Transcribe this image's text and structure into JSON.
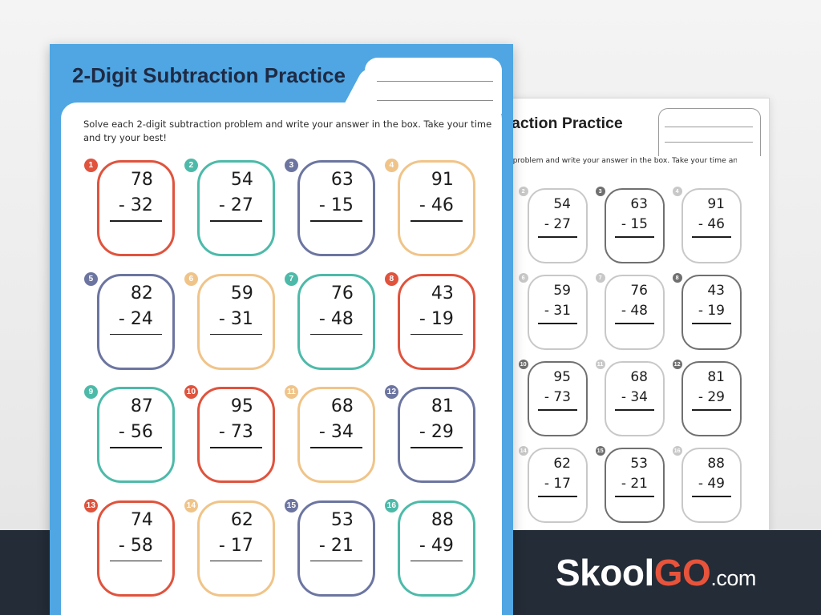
{
  "header": {
    "title": "2-Digit Subtraction Practice",
    "instructions": "Solve each 2-digit subtraction problem and write your answer in the box. Take your time and try your best!"
  },
  "problems": [
    {
      "number": 1,
      "top": 78,
      "bottom": "- 32",
      "color": "#e0533d"
    },
    {
      "number": 2,
      "top": 54,
      "bottom": "- 27",
      "color": "#4dbaa9"
    },
    {
      "number": 3,
      "top": 63,
      "bottom": "- 15",
      "color": "#6c75a0"
    },
    {
      "number": 4,
      "top": 91,
      "bottom": "- 46",
      "color": "#f0c489"
    },
    {
      "number": 5,
      "top": 82,
      "bottom": "- 24",
      "color": "#6c75a0"
    },
    {
      "number": 6,
      "top": 59,
      "bottom": "- 31",
      "color": "#f0c489"
    },
    {
      "number": 7,
      "top": 76,
      "bottom": "- 48",
      "color": "#4dbaa9"
    },
    {
      "number": 8,
      "top": 43,
      "bottom": "- 19",
      "color": "#e0533d"
    },
    {
      "number": 9,
      "top": 87,
      "bottom": "- 56",
      "color": "#4dbaa9"
    },
    {
      "number": 10,
      "top": 95,
      "bottom": "- 73",
      "color": "#e0533d"
    },
    {
      "number": 11,
      "top": 68,
      "bottom": "- 34",
      "color": "#f0c489"
    },
    {
      "number": 12,
      "top": 81,
      "bottom": "- 29",
      "color": "#6c75a0"
    },
    {
      "number": 13,
      "top": 74,
      "bottom": "- 58",
      "color": "#e0533d"
    },
    {
      "number": 14,
      "top": 62,
      "bottom": "- 17",
      "color": "#f0c489"
    },
    {
      "number": 15,
      "top": 53,
      "bottom": "- 21",
      "color": "#6c75a0"
    },
    {
      "number": 16,
      "top": 88,
      "bottom": "- 49",
      "color": "#4dbaa9"
    }
  ],
  "brand": {
    "name": "Skool",
    "highlight": "GO",
    "suffix": ".com"
  }
}
